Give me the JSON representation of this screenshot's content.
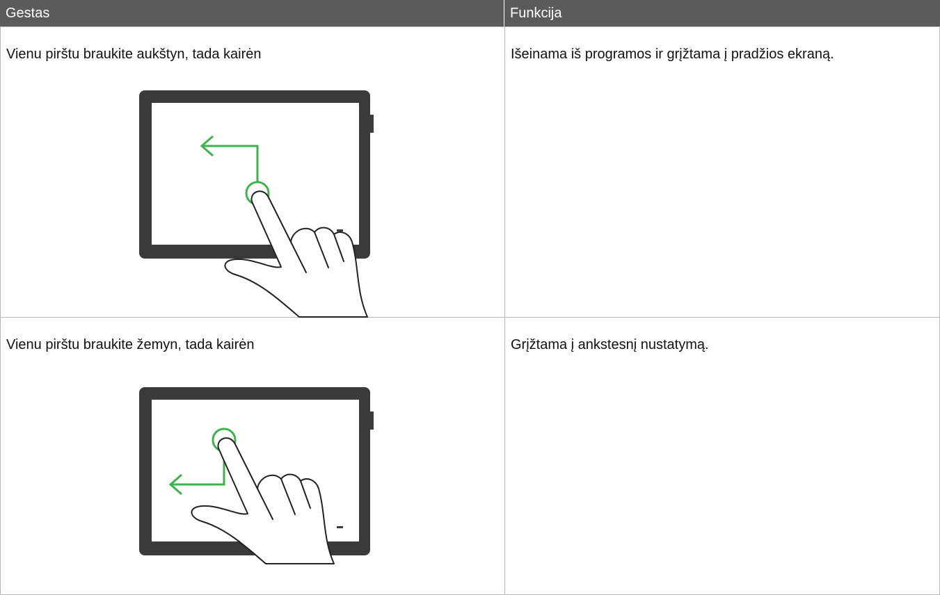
{
  "table": {
    "header": [
      "Gestas",
      "Funkcija"
    ],
    "rows": [
      [
        "Vienu pirštu braukite aukštyn, tada kairėn",
        "Išeinama iš programos ir grįžtama į pradžios ekraną."
      ],
      [
        "Vienu pirštu braukite žemyn, tada kairėn",
        "Grįžtama į ankstesnį nustatymą."
      ]
    ]
  }
}
